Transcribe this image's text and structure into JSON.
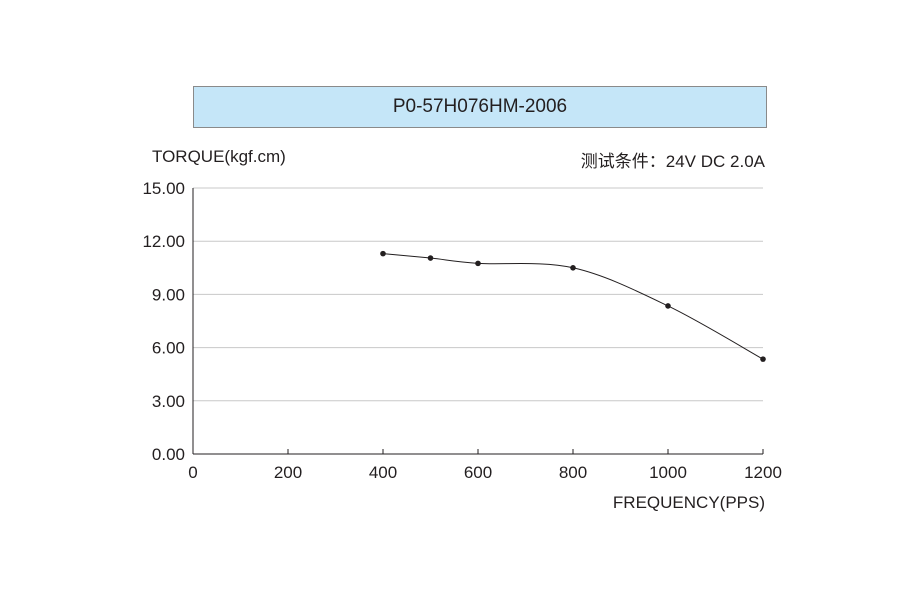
{
  "chart_data": {
    "type": "line",
    "title": "P0-57H076HM-2006",
    "ylabel": "TORQUE(kgf.cm)",
    "xlabel": "FREQUENCY(PPS)",
    "annotation": "测试条件：24V DC  2.0A",
    "xlim": [
      0,
      1200
    ],
    "ylim": [
      0,
      15
    ],
    "x_ticks": [
      "0",
      "200",
      "400",
      "600",
      "800",
      "1000",
      "1200"
    ],
    "y_ticks": [
      "0.00",
      "3.00",
      "6.00",
      "9.00",
      "12.00",
      "15.00"
    ],
    "grid": "horizontal",
    "series": [
      {
        "x": [
          400,
          500,
          600,
          800,
          1000,
          1200
        ],
        "y": [
          11.3,
          11.05,
          10.75,
          10.5,
          8.35,
          5.35
        ]
      }
    ],
    "colors": {
      "title_fill": "#c5e6f8",
      "line": "#231f20",
      "grid": "#c8c8c8"
    }
  }
}
